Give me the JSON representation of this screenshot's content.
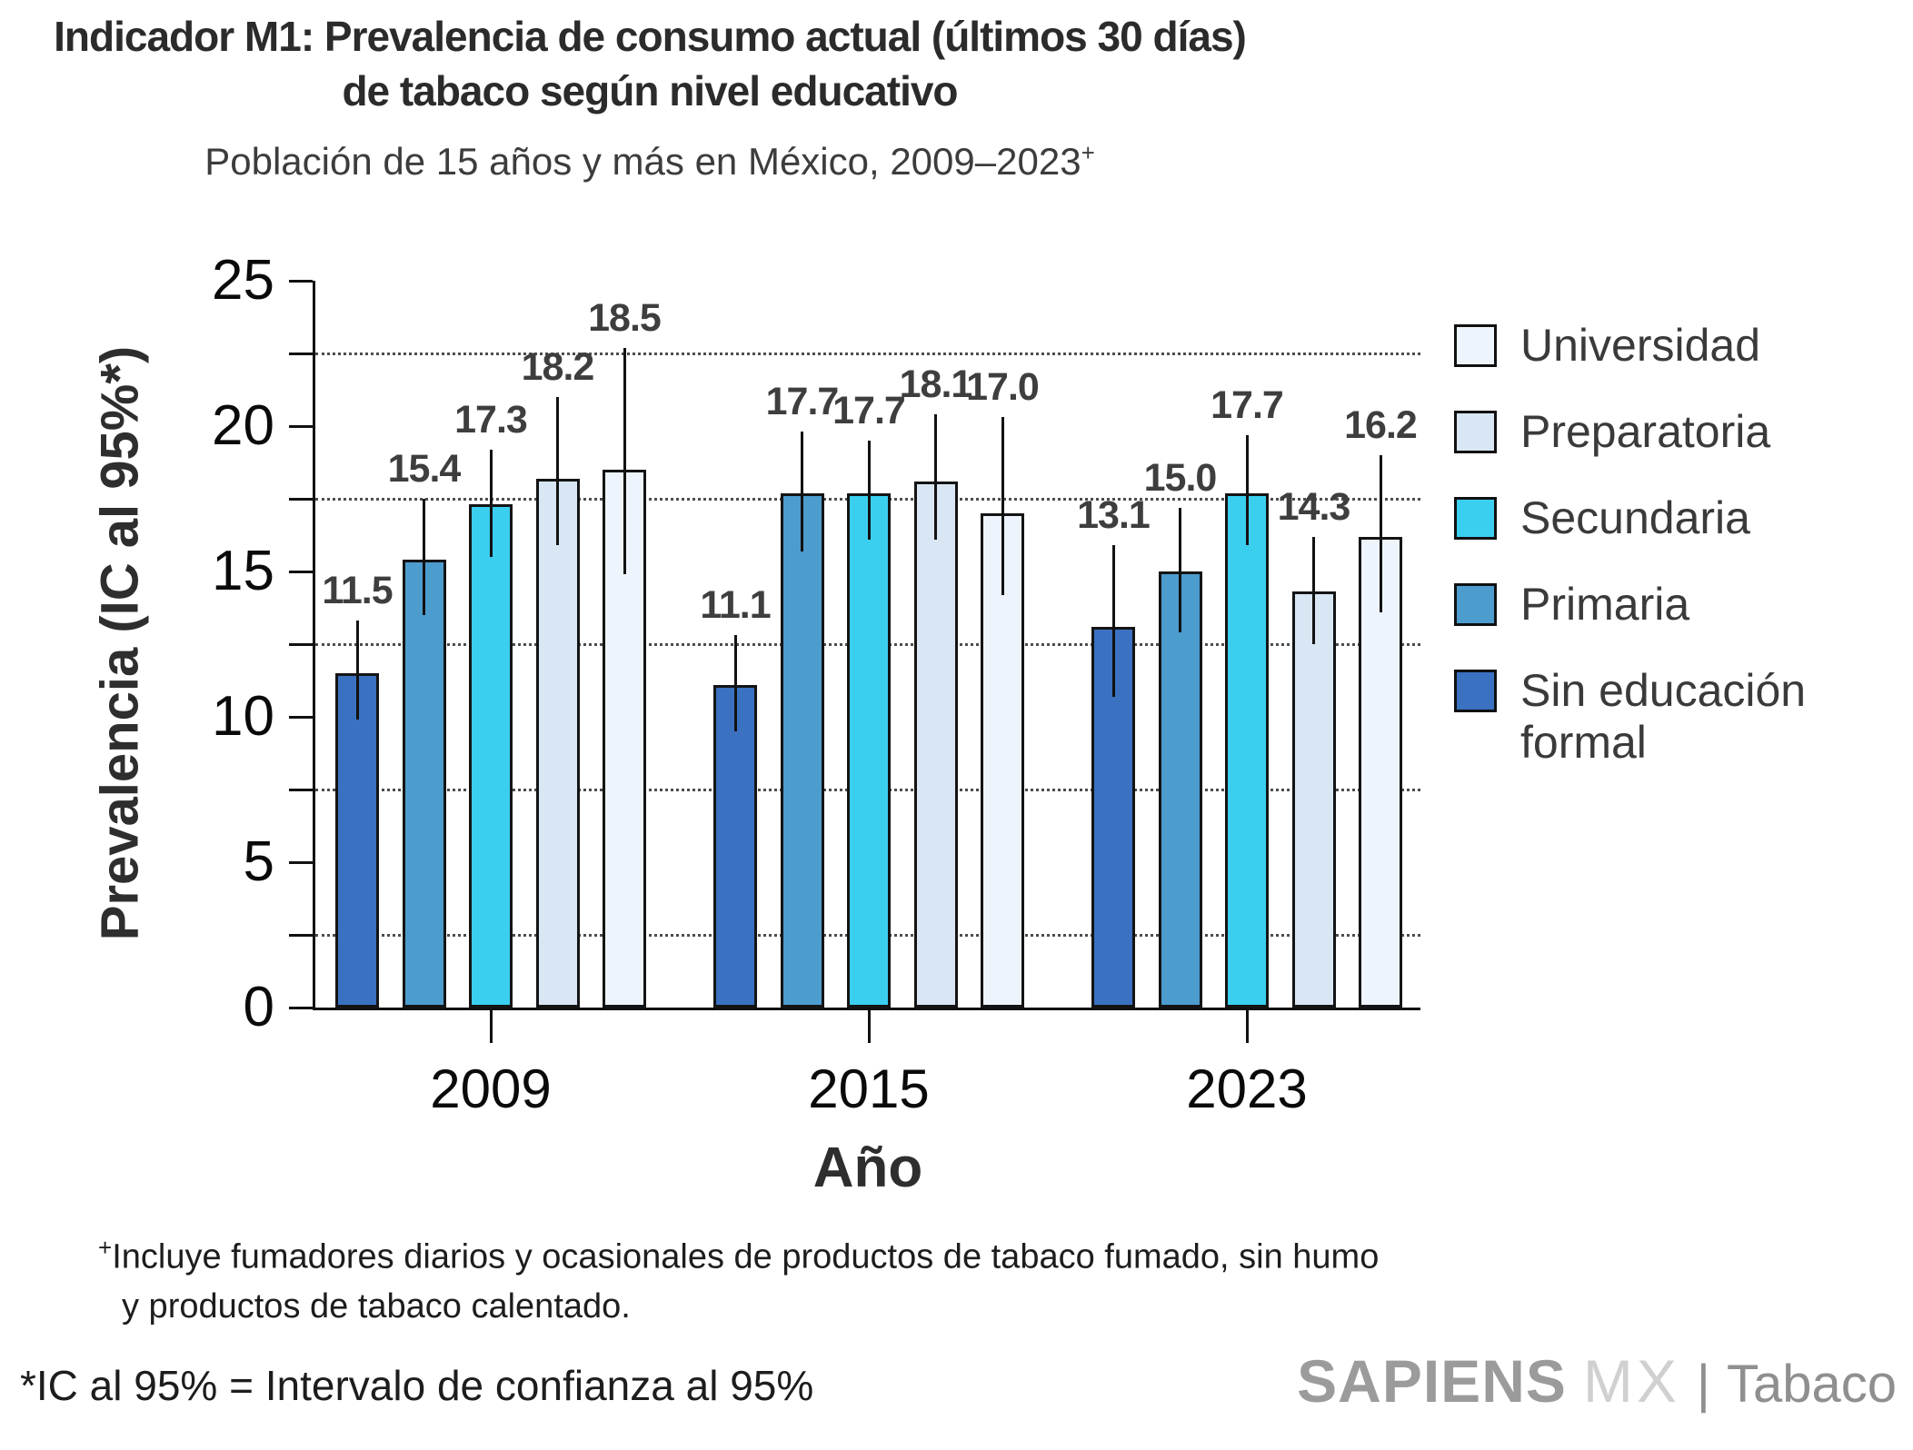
{
  "header": {
    "title_line1": "Indicador M1: Prevalencia de consumo actual (últimos 30 días)",
    "title_line2": "de tabaco según nivel educativo",
    "subtitle": "Población de 15 años y más en México, 2009–2023",
    "subtitle_superscript": "+"
  },
  "chart_data": {
    "type": "bar",
    "title": "Indicador M1: Prevalencia de consumo actual (últimos 30 días) de tabaco según nivel educativo",
    "subtitle": "Población de 15 años y más en México, 2009–2023+",
    "xlabel": "Año",
    "ylabel": "Prevalencia (IC al 95%*)",
    "ylim": [
      0,
      25
    ],
    "ytick_labels": [
      0,
      5,
      10,
      15,
      20,
      25
    ],
    "ytick_minor_step": 2.5,
    "gridlines": [
      2.5,
      7.5,
      12.5,
      17.5,
      22.5
    ],
    "grid_style": "dotted-horizontal",
    "legend_position": "right",
    "error_bars": "IC al 95%",
    "categories": [
      "2009",
      "2015",
      "2023"
    ],
    "series": [
      {
        "name": "Sin educación formal",
        "color": "#3a71c0",
        "values": [
          11.5,
          11.1,
          13.1
        ],
        "ci_low": [
          9.9,
          9.5,
          10.7
        ],
        "ci_high": [
          13.3,
          12.8,
          15.9
        ]
      },
      {
        "name": "Primaria",
        "color": "#4d9cce",
        "values": [
          15.4,
          17.7,
          15.0
        ],
        "ci_low": [
          13.5,
          15.7,
          12.9
        ],
        "ci_high": [
          17.5,
          19.8,
          17.2
        ]
      },
      {
        "name": "Secundaria",
        "color": "#3bcfef",
        "values": [
          17.3,
          17.7,
          17.7
        ],
        "ci_low": [
          15.5,
          16.1,
          15.9
        ],
        "ci_high": [
          19.2,
          19.5,
          19.7
        ]
      },
      {
        "name": "Preparatoria",
        "color": "#d9e6f4",
        "values": [
          18.2,
          18.1,
          14.3
        ],
        "ci_low": [
          15.9,
          16.1,
          12.5
        ],
        "ci_high": [
          21.0,
          20.4,
          16.2
        ]
      },
      {
        "name": "Universidad",
        "color": "#eef4fb",
        "values": [
          18.5,
          17.0,
          16.2
        ],
        "ci_low": [
          14.9,
          14.2,
          13.6
        ],
        "ci_high": [
          22.7,
          20.3,
          19.0
        ]
      }
    ]
  },
  "legend": {
    "items": [
      {
        "label": "Universidad",
        "color": "#eef4fb"
      },
      {
        "label": "Preparatoria",
        "color": "#d9e6f4"
      },
      {
        "label": "Secundaria",
        "color": "#3bcfef"
      },
      {
        "label": "Primaria",
        "color": "#4d9cce"
      },
      {
        "label": "Sin educación\nformal",
        "color": "#3a71c0"
      }
    ]
  },
  "footnotes": {
    "plus_superscript": "+",
    "plus_text": "Incluye fumadores diarios y ocasionales de productos de tabaco fumado, sin humo\ny productos de tabaco calentado.",
    "ci_note": "*IC al 95% = Intervalo de confianza al 95%"
  },
  "branding": {
    "name": "SAPIENS",
    "suffix": "MX",
    "separator": "|",
    "product": "Tabaco"
  }
}
